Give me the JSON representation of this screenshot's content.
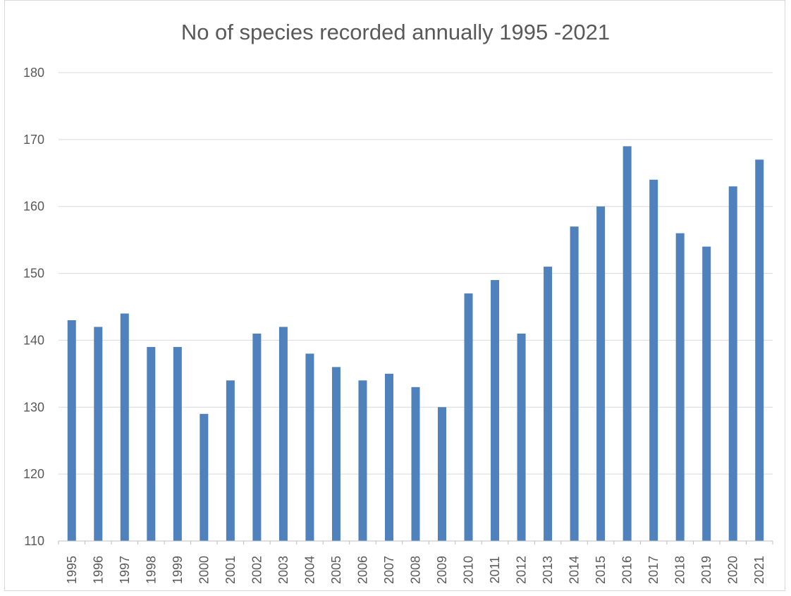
{
  "chart_data": {
    "type": "bar",
    "title": "No of species recorded annually 1995 -2021",
    "xlabel": "",
    "ylabel": "",
    "categories": [
      "1995",
      "1996",
      "1997",
      "1998",
      "1999",
      "2000",
      "2001",
      "2002",
      "2003",
      "2004",
      "2005",
      "2006",
      "2007",
      "2008",
      "2009",
      "2010",
      "2011",
      "2012",
      "2013",
      "2014",
      "2015",
      "2016",
      "2017",
      "2018",
      "2019",
      "2020",
      "2021"
    ],
    "values": [
      143,
      142,
      144,
      139,
      139,
      129,
      134,
      141,
      142,
      138,
      136,
      134,
      135,
      133,
      130,
      147,
      149,
      141,
      151,
      157,
      160,
      169,
      164,
      156,
      154,
      163,
      167
    ],
    "ylim": [
      110,
      180
    ],
    "yticks": [
      "110",
      "120",
      "130",
      "140",
      "150",
      "160",
      "170",
      "180"
    ],
    "grid": true,
    "legend": "none",
    "colors": {
      "bar": "#4f81bd",
      "grid": "#d9d9d9",
      "axis": "#bfbfbf",
      "text": "#595959"
    }
  }
}
